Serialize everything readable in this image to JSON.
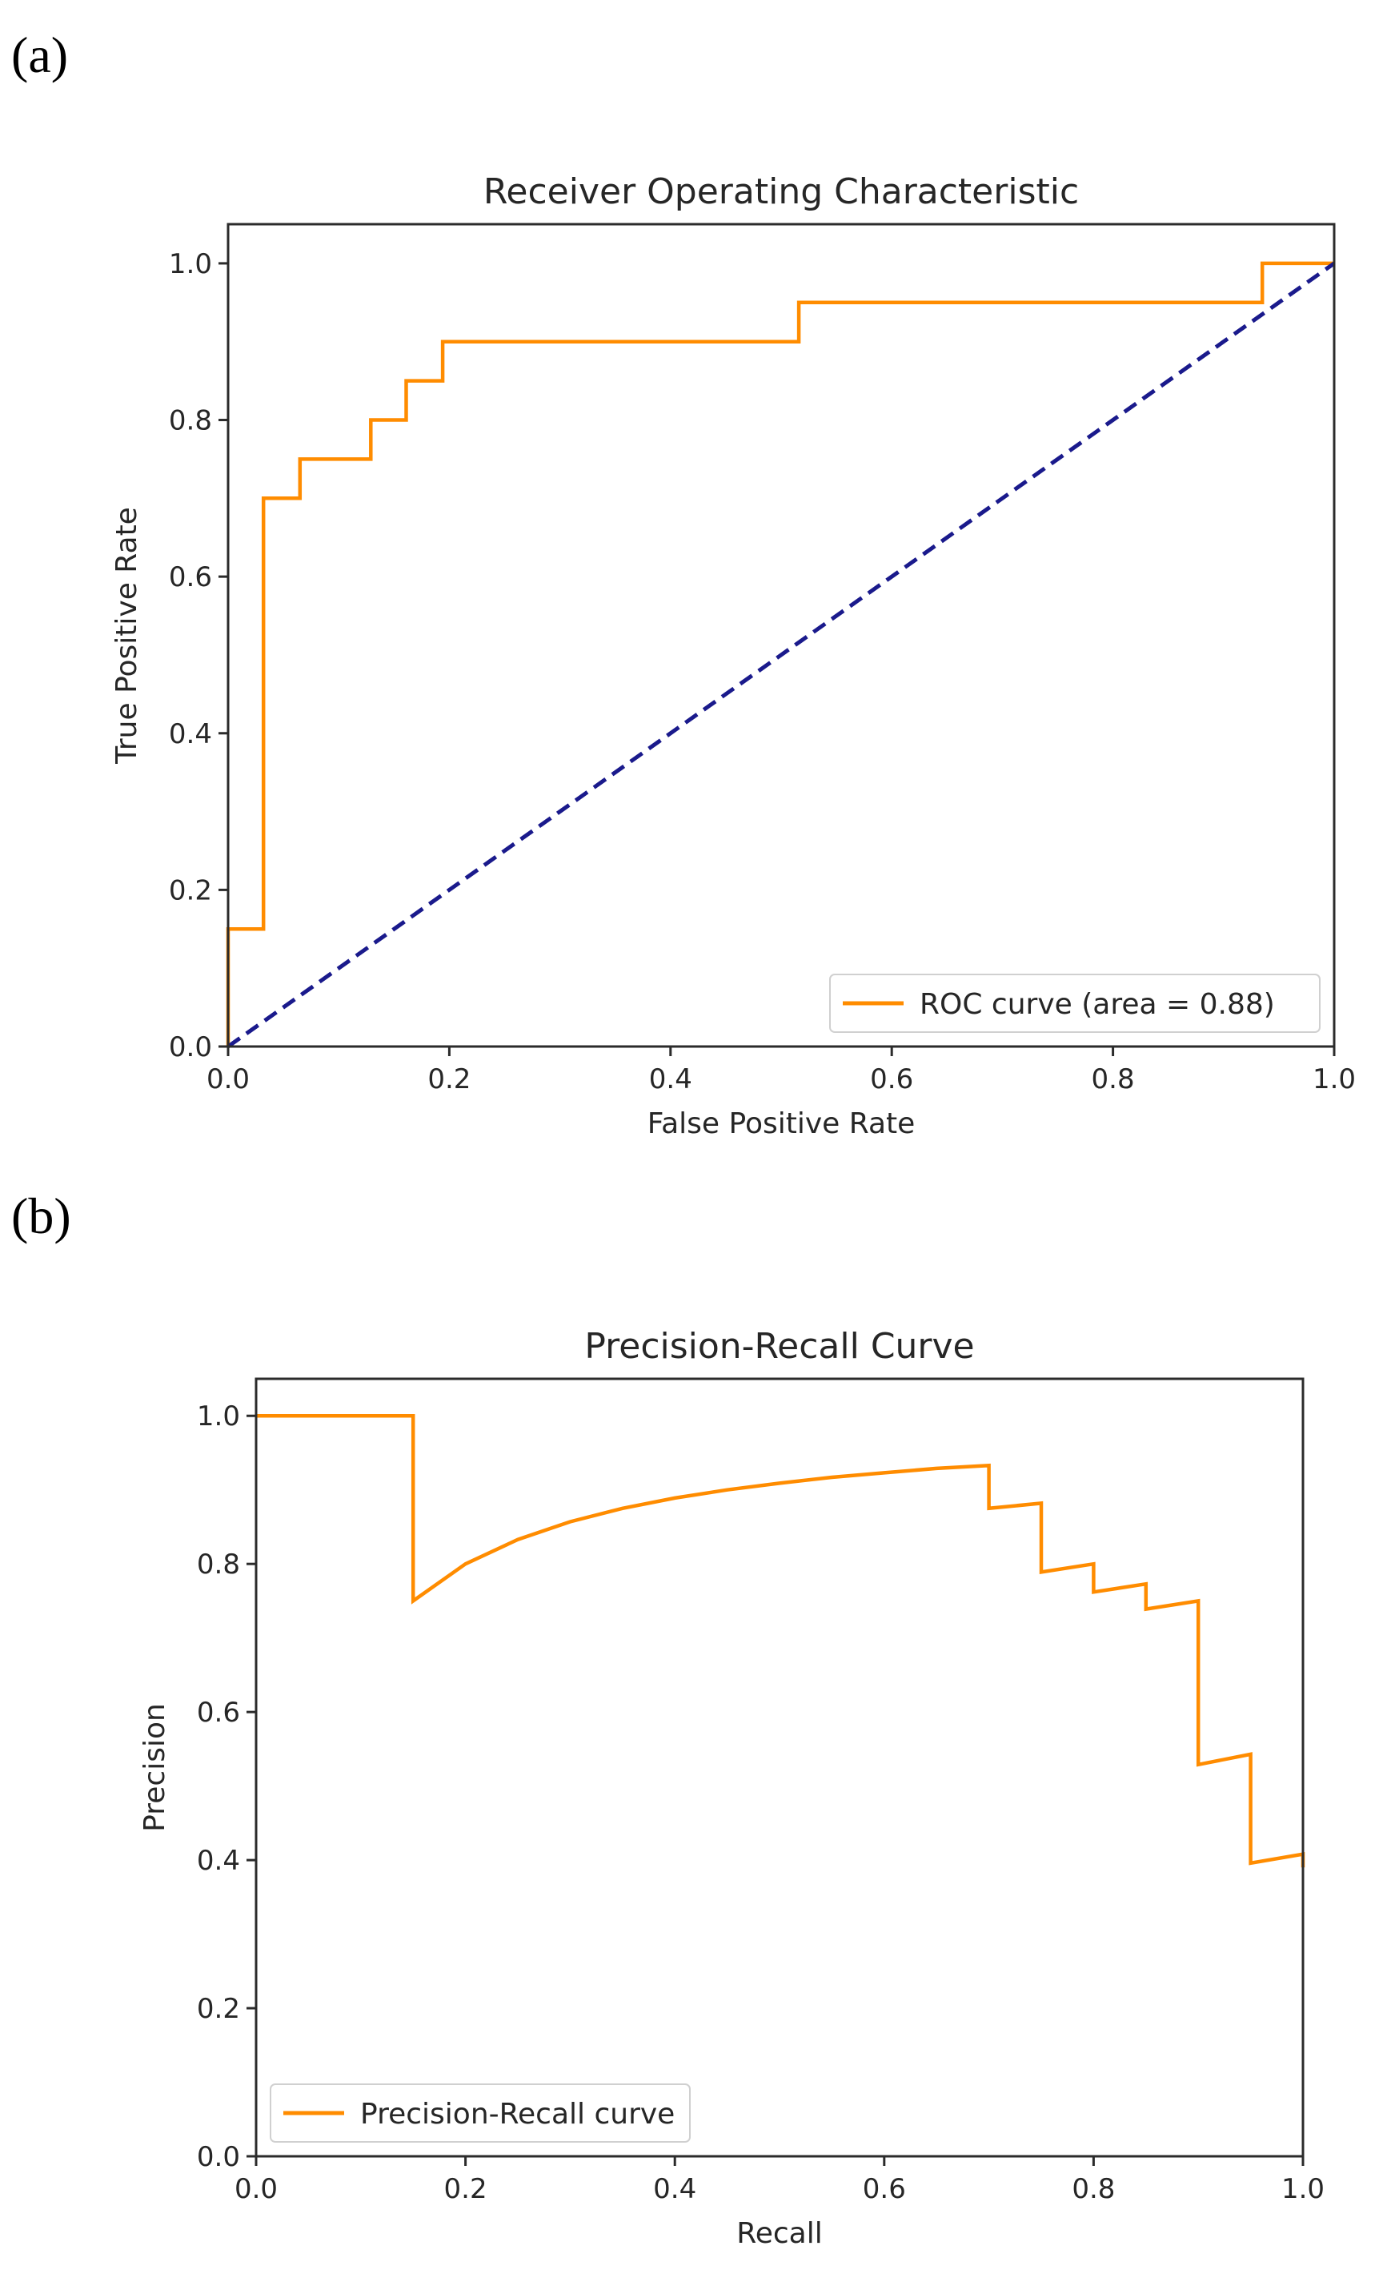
{
  "panels": [
    {
      "label": "(a)"
    },
    {
      "label": "(b)"
    }
  ],
  "colors": {
    "curve": "#ff8c00",
    "diagonal": "#1a1a8c",
    "axes": "#2b2b2b"
  },
  "chart_data": [
    {
      "type": "line",
      "title": "Receiver Operating Characteristic",
      "xlabel": "False Positive Rate",
      "ylabel": "True Positive Rate",
      "xlim": [
        0,
        1
      ],
      "ylim": [
        0,
        1.05
      ],
      "xticks": [
        0.0,
        0.2,
        0.4,
        0.6,
        0.8,
        1.0
      ],
      "yticks": [
        0.0,
        0.2,
        0.4,
        0.6,
        0.8,
        1.0
      ],
      "xtick_labels": [
        "0.0",
        "0.2",
        "0.4",
        "0.6",
        "0.8",
        "1.0"
      ],
      "ytick_labels": [
        "0.0",
        "0.2",
        "0.4",
        "0.6",
        "0.8",
        "1.0"
      ],
      "legend_position": "lower right",
      "grid": false,
      "series": [
        {
          "name": "ROC curve (area = 0.88)",
          "style": "solid",
          "color": "#ff8c00",
          "x": [
            0.0,
            0.0,
            0.032,
            0.032,
            0.065,
            0.065,
            0.129,
            0.129,
            0.161,
            0.161,
            0.194,
            0.194,
            0.516,
            0.516,
            0.935,
            0.935,
            1.0
          ],
          "y": [
            0.0,
            0.15,
            0.15,
            0.7,
            0.7,
            0.75,
            0.75,
            0.8,
            0.8,
            0.85,
            0.85,
            0.9,
            0.9,
            0.95,
            0.95,
            1.0,
            1.0
          ]
        },
        {
          "style": "dashed",
          "color": "#1a1a8c",
          "x": [
            0.0,
            1.0
          ],
          "y": [
            0.0,
            1.0
          ]
        }
      ]
    },
    {
      "type": "line",
      "title": "Precision-Recall Curve",
      "xlabel": "Recall",
      "ylabel": "Precision",
      "xlim": [
        0,
        1
      ],
      "ylim": [
        0,
        1.05
      ],
      "xticks": [
        0.0,
        0.2,
        0.4,
        0.6,
        0.8,
        1.0
      ],
      "yticks": [
        0.0,
        0.2,
        0.4,
        0.6,
        0.8,
        1.0
      ],
      "xtick_labels": [
        "0.0",
        "0.2",
        "0.4",
        "0.6",
        "0.8",
        "1.0"
      ],
      "ytick_labels": [
        "0.0",
        "0.2",
        "0.4",
        "0.6",
        "0.8",
        "1.0"
      ],
      "legend_position": "lower left",
      "grid": false,
      "series": [
        {
          "name": "Precision-Recall curve",
          "style": "solid",
          "color": "#ff8c00",
          "x": [
            0.0,
            0.15,
            0.15,
            0.2,
            0.25,
            0.3,
            0.35,
            0.4,
            0.45,
            0.5,
            0.55,
            0.6,
            0.65,
            0.7,
            0.7,
            0.75,
            0.75,
            0.8,
            0.8,
            0.85,
            0.85,
            0.9,
            0.9,
            0.95,
            0.95,
            1.0,
            1.0
          ],
          "y": [
            1.0,
            1.0,
            0.75,
            0.8,
            0.833,
            0.857,
            0.875,
            0.889,
            0.9,
            0.909,
            0.917,
            0.923,
            0.929,
            0.933,
            0.875,
            0.882,
            0.789,
            0.8,
            0.762,
            0.773,
            0.739,
            0.75,
            0.529,
            0.543,
            0.396,
            0.408,
            0.39
          ]
        }
      ]
    }
  ]
}
